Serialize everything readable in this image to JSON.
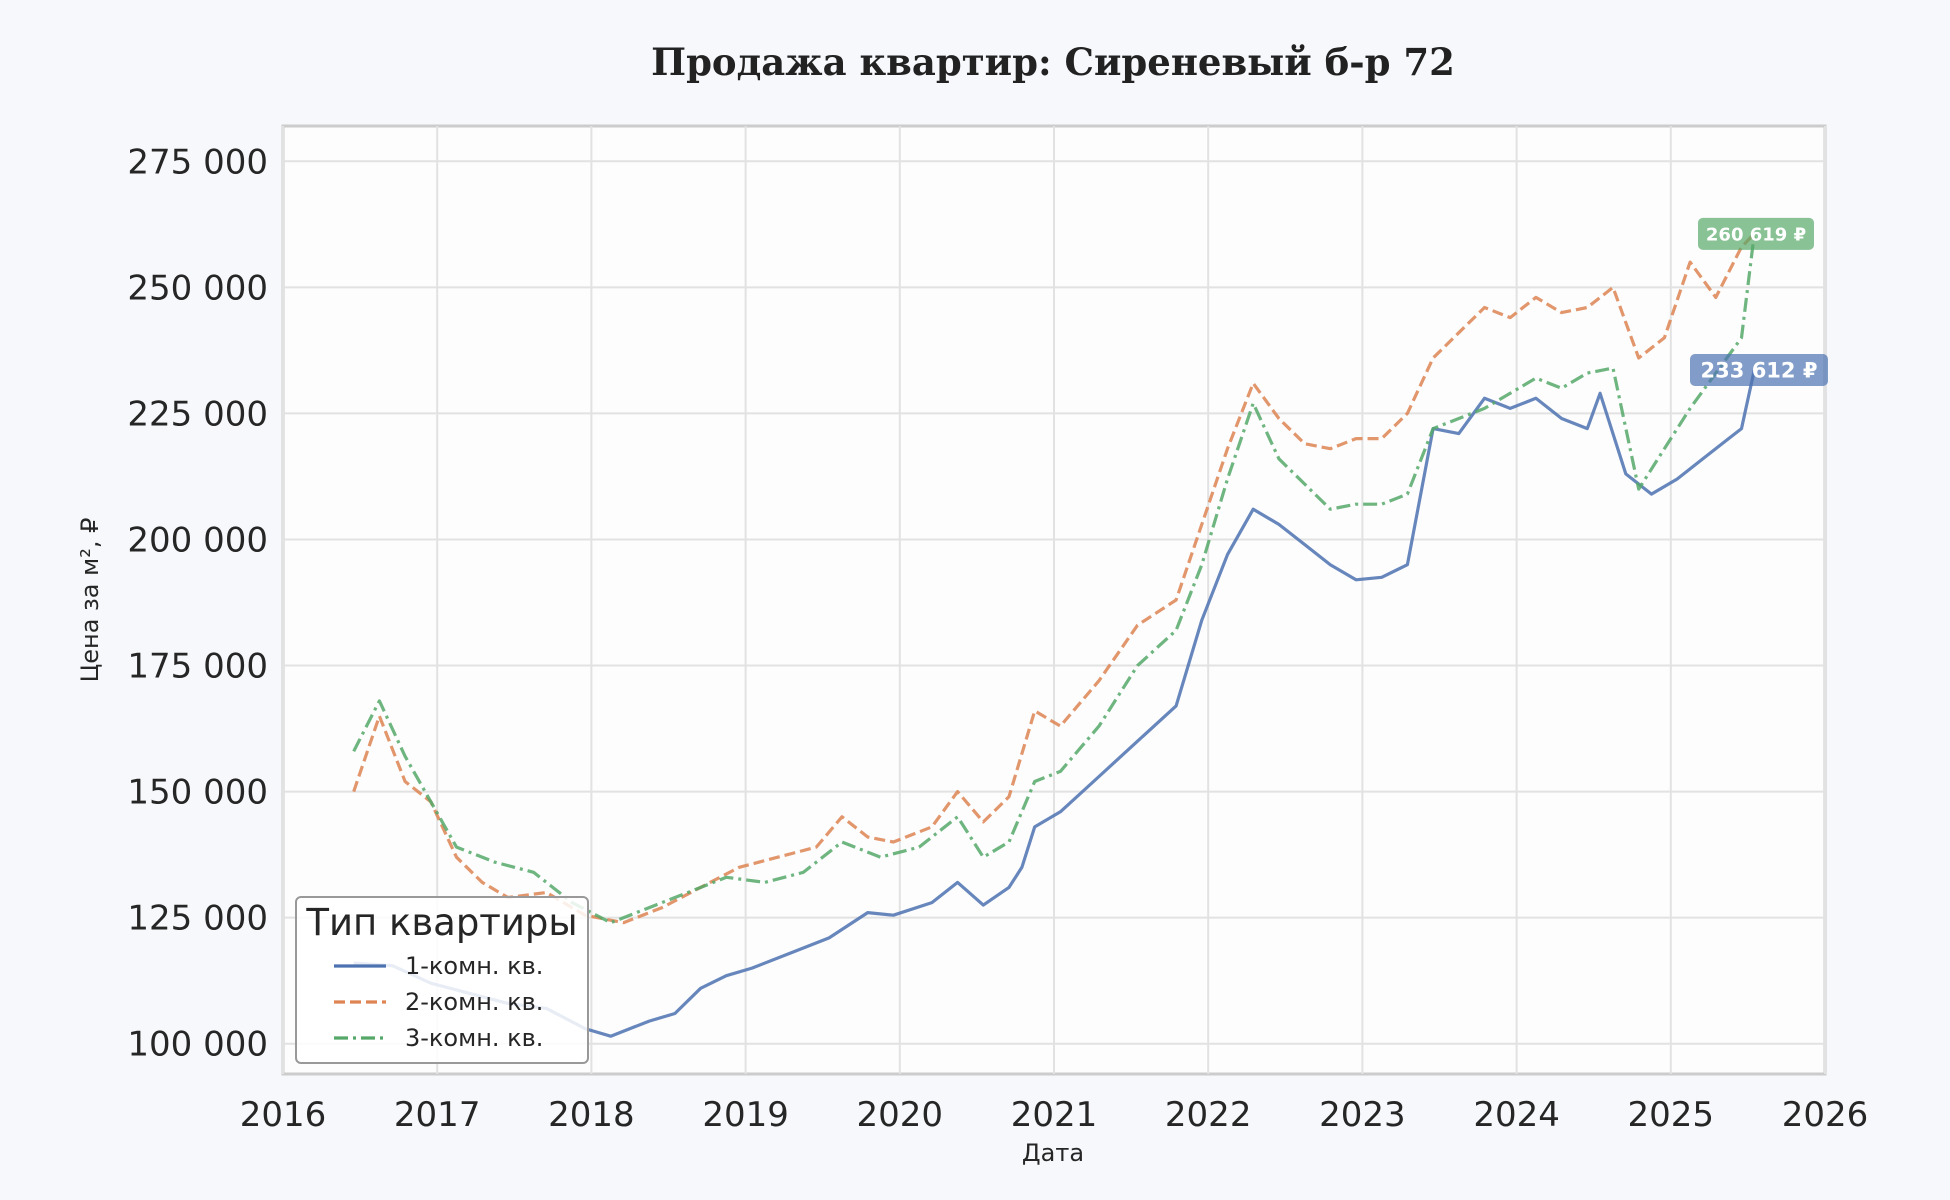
{
  "chart_data": {
    "type": "line",
    "title": "Продажа квартир: Сиреневый б-р 72",
    "xlabel": "Дата",
    "ylabel": "Цена за м², ₽",
    "xlim": [
      2016,
      2026
    ],
    "ylim": [
      94000,
      282000
    ],
    "x_ticks": [
      "2016",
      "2017",
      "2018",
      "2019",
      "2020",
      "2021",
      "2022",
      "2023",
      "2024",
      "2025",
      "2026"
    ],
    "y_ticks": [
      {
        "value": 100000,
        "label": "100 000"
      },
      {
        "value": 125000,
        "label": "125 000"
      },
      {
        "value": 150000,
        "label": "150 000"
      },
      {
        "value": 175000,
        "label": "175 000"
      },
      {
        "value": 200000,
        "label": "200 000"
      },
      {
        "value": 225000,
        "label": "225 000"
      },
      {
        "value": 250000,
        "label": "250 000"
      },
      {
        "value": 275000,
        "label": "275 000"
      }
    ],
    "grid": true,
    "legend": {
      "title": "Тип квартиры",
      "placement": "lower-left"
    },
    "series": [
      {
        "name": "1-комн. кв.",
        "color": "#4c72b0",
        "dash": "solid",
        "end_label": "233 612 ₽",
        "points": [
          [
            "2016-06",
            116000
          ],
          [
            "2016-09",
            115500
          ],
          [
            "2016-12",
            112000
          ],
          [
            "2017-03",
            110000
          ],
          [
            "2017-06",
            108000
          ],
          [
            "2017-09",
            107000
          ],
          [
            "2017-12",
            103000
          ],
          [
            "2018-02",
            101500
          ],
          [
            "2018-05",
            104500
          ],
          [
            "2018-07",
            106000
          ],
          [
            "2018-09",
            111000
          ],
          [
            "2018-11",
            113500
          ],
          [
            "2019-01",
            115000
          ],
          [
            "2019-04",
            118000
          ],
          [
            "2019-07",
            121000
          ],
          [
            "2019-10",
            126000
          ],
          [
            "2019-12",
            125500
          ],
          [
            "2020-03",
            128000
          ],
          [
            "2020-05",
            132000
          ],
          [
            "2020-07",
            127500
          ],
          [
            "2020-09",
            131000
          ],
          [
            "2020-10",
            135000
          ],
          [
            "2020-11",
            143000
          ],
          [
            "2021-01",
            146000
          ],
          [
            "2021-04",
            153000
          ],
          [
            "2021-07",
            160000
          ],
          [
            "2021-10",
            167000
          ],
          [
            "2021-12",
            184000
          ],
          [
            "2022-02",
            197000
          ],
          [
            "2022-04",
            206000
          ],
          [
            "2022-06",
            203000
          ],
          [
            "2022-08",
            199000
          ],
          [
            "2022-10",
            195000
          ],
          [
            "2022-12",
            192000
          ],
          [
            "2023-02",
            192500
          ],
          [
            "2023-04",
            195000
          ],
          [
            "2023-06",
            222000
          ],
          [
            "2023-08",
            221000
          ],
          [
            "2023-10",
            228000
          ],
          [
            "2023-12",
            226000
          ],
          [
            "2024-02",
            228000
          ],
          [
            "2024-04",
            224000
          ],
          [
            "2024-06",
            222000
          ],
          [
            "2024-07",
            229000
          ],
          [
            "2024-09",
            213000
          ],
          [
            "2024-11",
            209000
          ],
          [
            "2025-01",
            212000
          ],
          [
            "2025-03",
            216000
          ],
          [
            "2025-05",
            220000
          ],
          [
            "2025-06",
            222000
          ],
          [
            "2025-07",
            233612
          ]
        ]
      },
      {
        "name": "2-комн. кв.",
        "color": "#dd8452",
        "dash": "dashed",
        "end_label": "",
        "points": [
          [
            "2016-06",
            150000
          ],
          [
            "2016-08",
            165000
          ],
          [
            "2016-10",
            152000
          ],
          [
            "2016-12",
            148000
          ],
          [
            "2017-02",
            137000
          ],
          [
            "2017-04",
            132000
          ],
          [
            "2017-06",
            129000
          ],
          [
            "2017-09",
            130000
          ],
          [
            "2017-12",
            125500
          ],
          [
            "2018-03",
            124000
          ],
          [
            "2018-06",
            127000
          ],
          [
            "2018-09",
            131000
          ],
          [
            "2018-12",
            135000
          ],
          [
            "2019-03",
            137000
          ],
          [
            "2019-06",
            139000
          ],
          [
            "2019-08",
            145000
          ],
          [
            "2019-10",
            141000
          ],
          [
            "2019-12",
            140000
          ],
          [
            "2020-03",
            143000
          ],
          [
            "2020-05",
            150000
          ],
          [
            "2020-07",
            144000
          ],
          [
            "2020-09",
            149000
          ],
          [
            "2020-11",
            166000
          ],
          [
            "2021-01",
            163000
          ],
          [
            "2021-04",
            172000
          ],
          [
            "2021-07",
            183000
          ],
          [
            "2021-10",
            188000
          ],
          [
            "2021-12",
            203000
          ],
          [
            "2022-02",
            218000
          ],
          [
            "2022-04",
            231000
          ],
          [
            "2022-06",
            224000
          ],
          [
            "2022-08",
            219000
          ],
          [
            "2022-10",
            218000
          ],
          [
            "2022-12",
            220000
          ],
          [
            "2023-02",
            220000
          ],
          [
            "2023-04",
            225000
          ],
          [
            "2023-06",
            236000
          ],
          [
            "2023-08",
            241000
          ],
          [
            "2023-10",
            246000
          ],
          [
            "2023-12",
            244000
          ],
          [
            "2024-02",
            248000
          ],
          [
            "2024-04",
            245000
          ],
          [
            "2024-06",
            246000
          ],
          [
            "2024-08",
            250000
          ],
          [
            "2024-10",
            236000
          ],
          [
            "2024-12",
            240000
          ],
          [
            "2025-02",
            255000
          ],
          [
            "2025-04",
            248000
          ],
          [
            "2025-06",
            258000
          ],
          [
            "2025-07",
            260619
          ]
        ]
      },
      {
        "name": "3-комн. кв.",
        "color": "#55a868",
        "dash": "dashdot",
        "end_label": "260 619 ₽",
        "points": [
          [
            "2016-06",
            158000
          ],
          [
            "2016-08",
            168000
          ],
          [
            "2016-10",
            157000
          ],
          [
            "2016-12",
            148000
          ],
          [
            "2017-02",
            139000
          ],
          [
            "2017-05",
            136000
          ],
          [
            "2017-08",
            134000
          ],
          [
            "2017-11",
            128000
          ],
          [
            "2018-02",
            124000
          ],
          [
            "2018-05",
            127000
          ],
          [
            "2018-08",
            130000
          ],
          [
            "2018-11",
            133000
          ],
          [
            "2019-02",
            132000
          ],
          [
            "2019-05",
            134000
          ],
          [
            "2019-08",
            140000
          ],
          [
            "2019-11",
            137000
          ],
          [
            "2020-02",
            139000
          ],
          [
            "2020-05",
            145000
          ],
          [
            "2020-07",
            137000
          ],
          [
            "2020-09",
            140000
          ],
          [
            "2020-11",
            152000
          ],
          [
            "2021-01",
            154000
          ],
          [
            "2021-04",
            163000
          ],
          [
            "2021-07",
            175000
          ],
          [
            "2021-10",
            182000
          ],
          [
            "2021-12",
            195000
          ],
          [
            "2022-02",
            212000
          ],
          [
            "2022-04",
            227000
          ],
          [
            "2022-06",
            216000
          ],
          [
            "2022-08",
            211000
          ],
          [
            "2022-10",
            206000
          ],
          [
            "2022-12",
            207000
          ],
          [
            "2023-02",
            207000
          ],
          [
            "2023-04",
            209000
          ],
          [
            "2023-06",
            222000
          ],
          [
            "2023-08",
            224000
          ],
          [
            "2023-10",
            226000
          ],
          [
            "2023-12",
            229000
          ],
          [
            "2024-02",
            232000
          ],
          [
            "2024-04",
            230000
          ],
          [
            "2024-06",
            233000
          ],
          [
            "2024-08",
            234000
          ],
          [
            "2024-10",
            210000
          ],
          [
            "2024-12",
            218000
          ],
          [
            "2025-02",
            226000
          ],
          [
            "2025-04",
            233000
          ],
          [
            "2025-06",
            240000
          ],
          [
            "2025-07",
            260619
          ]
        ]
      }
    ]
  }
}
